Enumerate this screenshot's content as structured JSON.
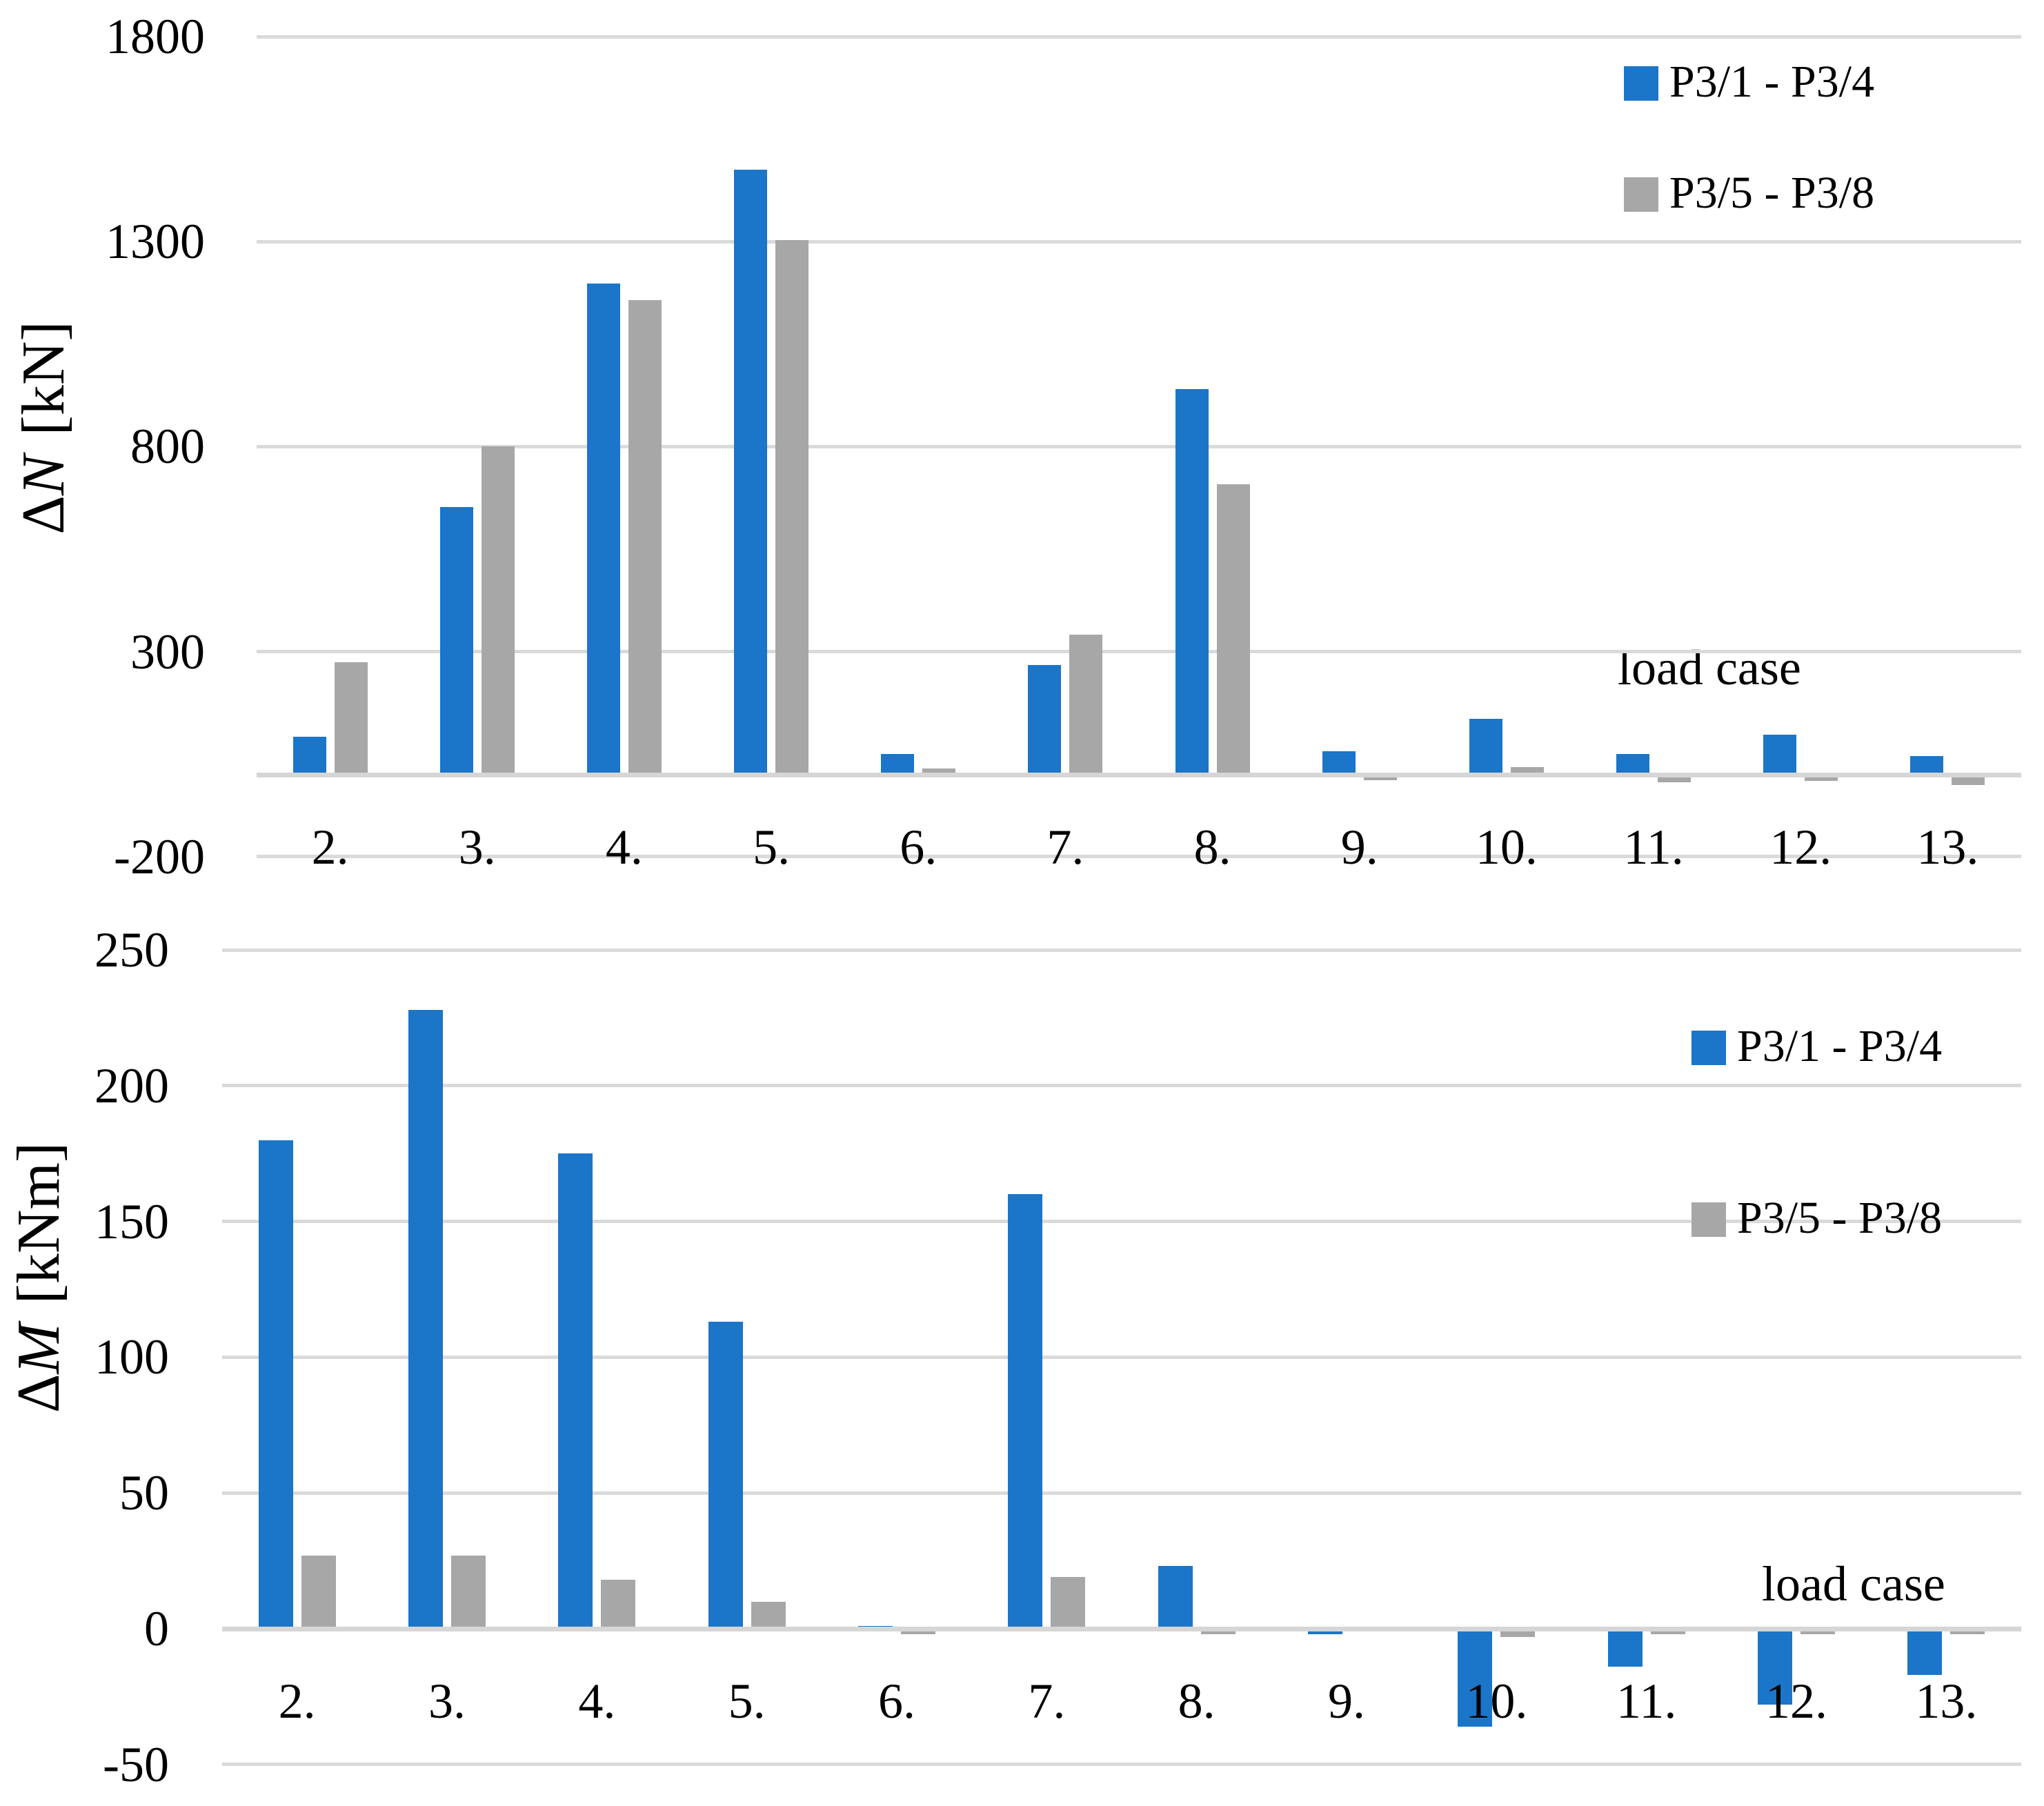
{
  "colors": {
    "background": "#FFFFFF",
    "text": "#000000",
    "gridline": "#DADADA",
    "zero_line": "#D6D6D6",
    "series_blue": "#1B75C8",
    "series_gray": "#A7A7A7"
  },
  "chart_data": [
    {
      "type": "bar",
      "title": "",
      "ylabel": "ΔN [kN]",
      "ylabel_prefix": "Δ",
      "ylabel_var": "N",
      "ylabel_unit": "[kN]",
      "xlabel": "load case",
      "categories": [
        "2.",
        "3.",
        "4.",
        "5.",
        "6.",
        "7.",
        "8.",
        "9.",
        "10.",
        "11.",
        "12.",
        "13."
      ],
      "series": [
        {
          "name": "P3/1 - P3/4",
          "color": "#1B75C8",
          "values": [
            92,
            653,
            1198,
            1476,
            51,
            268,
            941,
            57,
            136,
            51,
            97,
            46
          ]
        },
        {
          "name": "P3/5 - P3/8",
          "color": "#A7A7A7",
          "values": [
            275,
            800,
            1158,
            1303,
            15,
            341,
            708,
            -13,
            19,
            -18,
            -15,
            -25
          ]
        }
      ],
      "ylim": [
        -200,
        1800
      ],
      "yticks": [
        -200,
        300,
        800,
        1300,
        1800
      ],
      "grid": true,
      "legend_position": "top-right"
    },
    {
      "type": "bar",
      "title": "",
      "ylabel": "ΔM [kNm]",
      "ylabel_prefix": "Δ",
      "ylabel_var": "M",
      "ylabel_unit": "[kNm]",
      "xlabel": "load case",
      "categories": [
        "2.",
        "3.",
        "4.",
        "5.",
        "6.",
        "7.",
        "8.",
        "9.",
        "10.",
        "11.",
        "12.",
        "13."
      ],
      "series": [
        {
          "name": "P3/1 - P3/4",
          "color": "#1B75C8",
          "values": [
            180,
            228,
            175,
            113,
            1,
            160,
            23,
            -2,
            -36,
            -14,
            -28,
            -17
          ]
        },
        {
          "name": "P3/5 - P3/8",
          "color": "#A7A7A7",
          "values": [
            27,
            27,
            18,
            10,
            -2,
            19,
            -2,
            -1,
            -3,
            -2,
            -2,
            -2
          ]
        }
      ],
      "ylim": [
        -50,
        250
      ],
      "yticks": [
        -50,
        0,
        50,
        100,
        150,
        200,
        250
      ],
      "grid": true,
      "legend_position": "top-right"
    }
  ]
}
